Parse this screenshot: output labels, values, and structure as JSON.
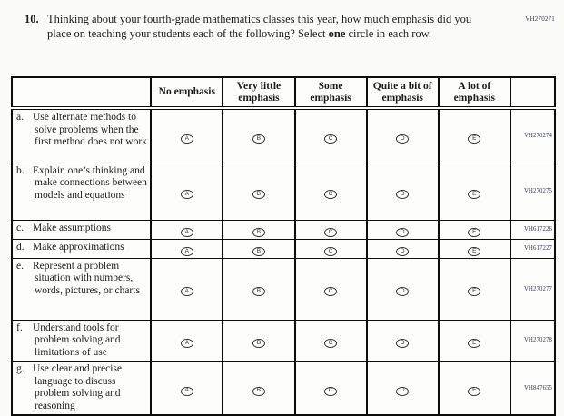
{
  "page": {
    "code_top_right": "VH270271"
  },
  "question": {
    "number": "10.",
    "text_part1": "Thinking about your fourth-grade mathematics classes this year, how much emphasis did you place on teaching your students each of the following? Select ",
    "text_bold": "one",
    "text_part2": " circle in each row."
  },
  "table": {
    "columns": [
      "No emphasis",
      "Very little emphasis",
      "Some emphasis",
      "Quite a bit of emphasis",
      "A lot of emphasis"
    ],
    "options": [
      "A",
      "B",
      "C",
      "D",
      "E"
    ],
    "rows": [
      {
        "letter": "a.",
        "text": "Use alternate methods to solve problems when the first method does not work",
        "code": "VH270274"
      },
      {
        "letter": "b.",
        "text": "Explain one’s thinking and make connections between models and equations",
        "code": "VH270275"
      },
      {
        "letter": "c.",
        "text": "Make assumptions",
        "code": "VH617226"
      },
      {
        "letter": "d.",
        "text": "Make approximations",
        "code": "VH617227"
      },
      {
        "letter": "e.",
        "text": "Represent a problem situation with numbers, words, pictures, or charts",
        "code": "VH270277"
      },
      {
        "letter": "f.",
        "text": "Understand tools for problem solving and limitations of use",
        "code": "VH270278"
      },
      {
        "letter": "g.",
        "text": "Use clear and precise language to discuss problem solving and reasoning",
        "code": "VH847655"
      }
    ]
  }
}
